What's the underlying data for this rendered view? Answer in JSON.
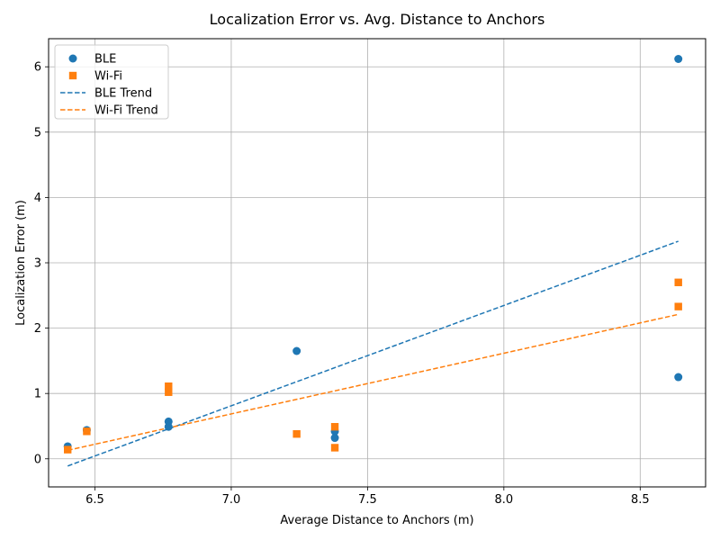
{
  "chart_data": {
    "type": "scatter",
    "title": "Localization Error vs. Avg. Distance to Anchors",
    "xlabel": "Average Distance to Anchors (m)",
    "ylabel": "Localization Error (m)",
    "xlim": [
      6.33,
      8.74
    ],
    "ylim": [
      -0.43,
      6.43
    ],
    "xticks": [
      6.5,
      7.0,
      7.5,
      8.0,
      8.5
    ],
    "xtick_labels": [
      "6.5",
      "7.0",
      "7.5",
      "8.0",
      "8.5"
    ],
    "yticks": [
      0,
      1,
      2,
      3,
      4,
      5,
      6
    ],
    "ytick_labels": [
      "0",
      "1",
      "2",
      "3",
      "4",
      "5",
      "6"
    ],
    "grid": true,
    "legend_position": "top-left",
    "series": [
      {
        "name": "BLE",
        "marker": "circle",
        "color": "#1f77b4",
        "points": [
          [
            6.4,
            0.19
          ],
          [
            6.47,
            0.44
          ],
          [
            6.77,
            0.57
          ],
          [
            6.77,
            0.49
          ],
          [
            7.24,
            1.65
          ],
          [
            7.38,
            0.42
          ],
          [
            7.38,
            0.32
          ],
          [
            8.64,
            6.12
          ],
          [
            8.64,
            1.25
          ]
        ]
      },
      {
        "name": "Wi-Fi",
        "marker": "square",
        "color": "#ff7f0e",
        "points": [
          [
            6.4,
            0.14
          ],
          [
            6.47,
            0.42
          ],
          [
            6.77,
            1.11
          ],
          [
            6.77,
            1.02
          ],
          [
            7.24,
            0.38
          ],
          [
            7.38,
            0.49
          ],
          [
            7.38,
            0.17
          ],
          [
            8.64,
            2.7
          ],
          [
            8.64,
            2.33
          ]
        ]
      }
    ],
    "trendlines": [
      {
        "name": "BLE Trend",
        "color": "#1f77b4",
        "style": "dashed",
        "from": [
          6.4,
          -0.11
        ],
        "to": [
          8.64,
          3.33
        ]
      },
      {
        "name": "Wi-Fi Trend",
        "color": "#ff7f0e",
        "style": "dashed",
        "from": [
          6.4,
          0.13
        ],
        "to": [
          8.64,
          2.21
        ]
      }
    ]
  }
}
